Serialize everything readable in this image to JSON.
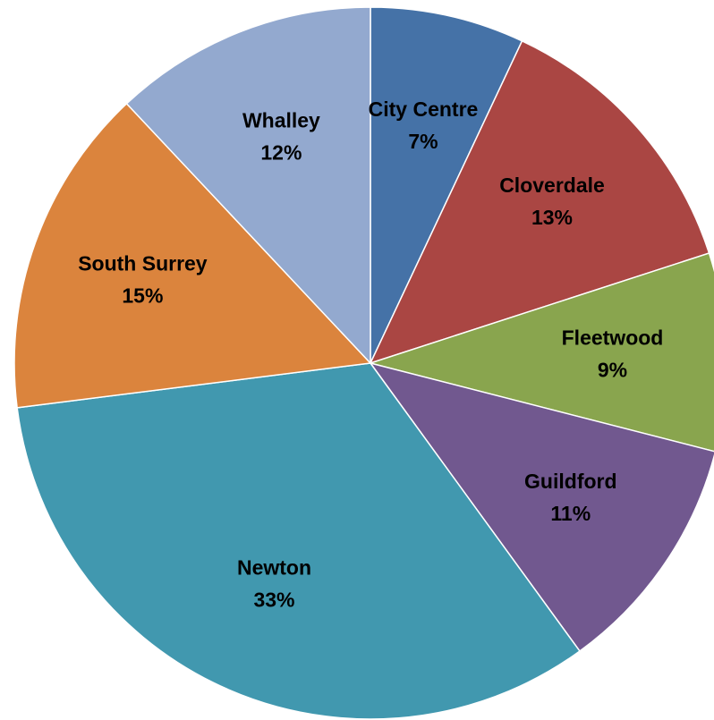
{
  "chart_data": {
    "type": "pie",
    "start_angle_deg": 0,
    "direction": "clockwise",
    "slices": [
      {
        "label": "City Centre",
        "value": 7,
        "value_label": "7%",
        "color": "#4572A7"
      },
      {
        "label": "Cloverdale",
        "value": 13,
        "value_label": "13%",
        "color": "#AA4643"
      },
      {
        "label": "Fleetwood",
        "value": 9,
        "value_label": "9%",
        "color": "#89A54E"
      },
      {
        "label": "Guildford",
        "value": 11,
        "value_label": "11%",
        "color": "#71588F"
      },
      {
        "label": "Newton",
        "value": 33,
        "value_label": "33%",
        "color": "#4198AF"
      },
      {
        "label": "South Surrey",
        "value": 15,
        "value_label": "15%",
        "color": "#DB843D"
      },
      {
        "label": "Whalley",
        "value": 12,
        "value_label": "12%",
        "color": "#93A9CF"
      }
    ]
  }
}
